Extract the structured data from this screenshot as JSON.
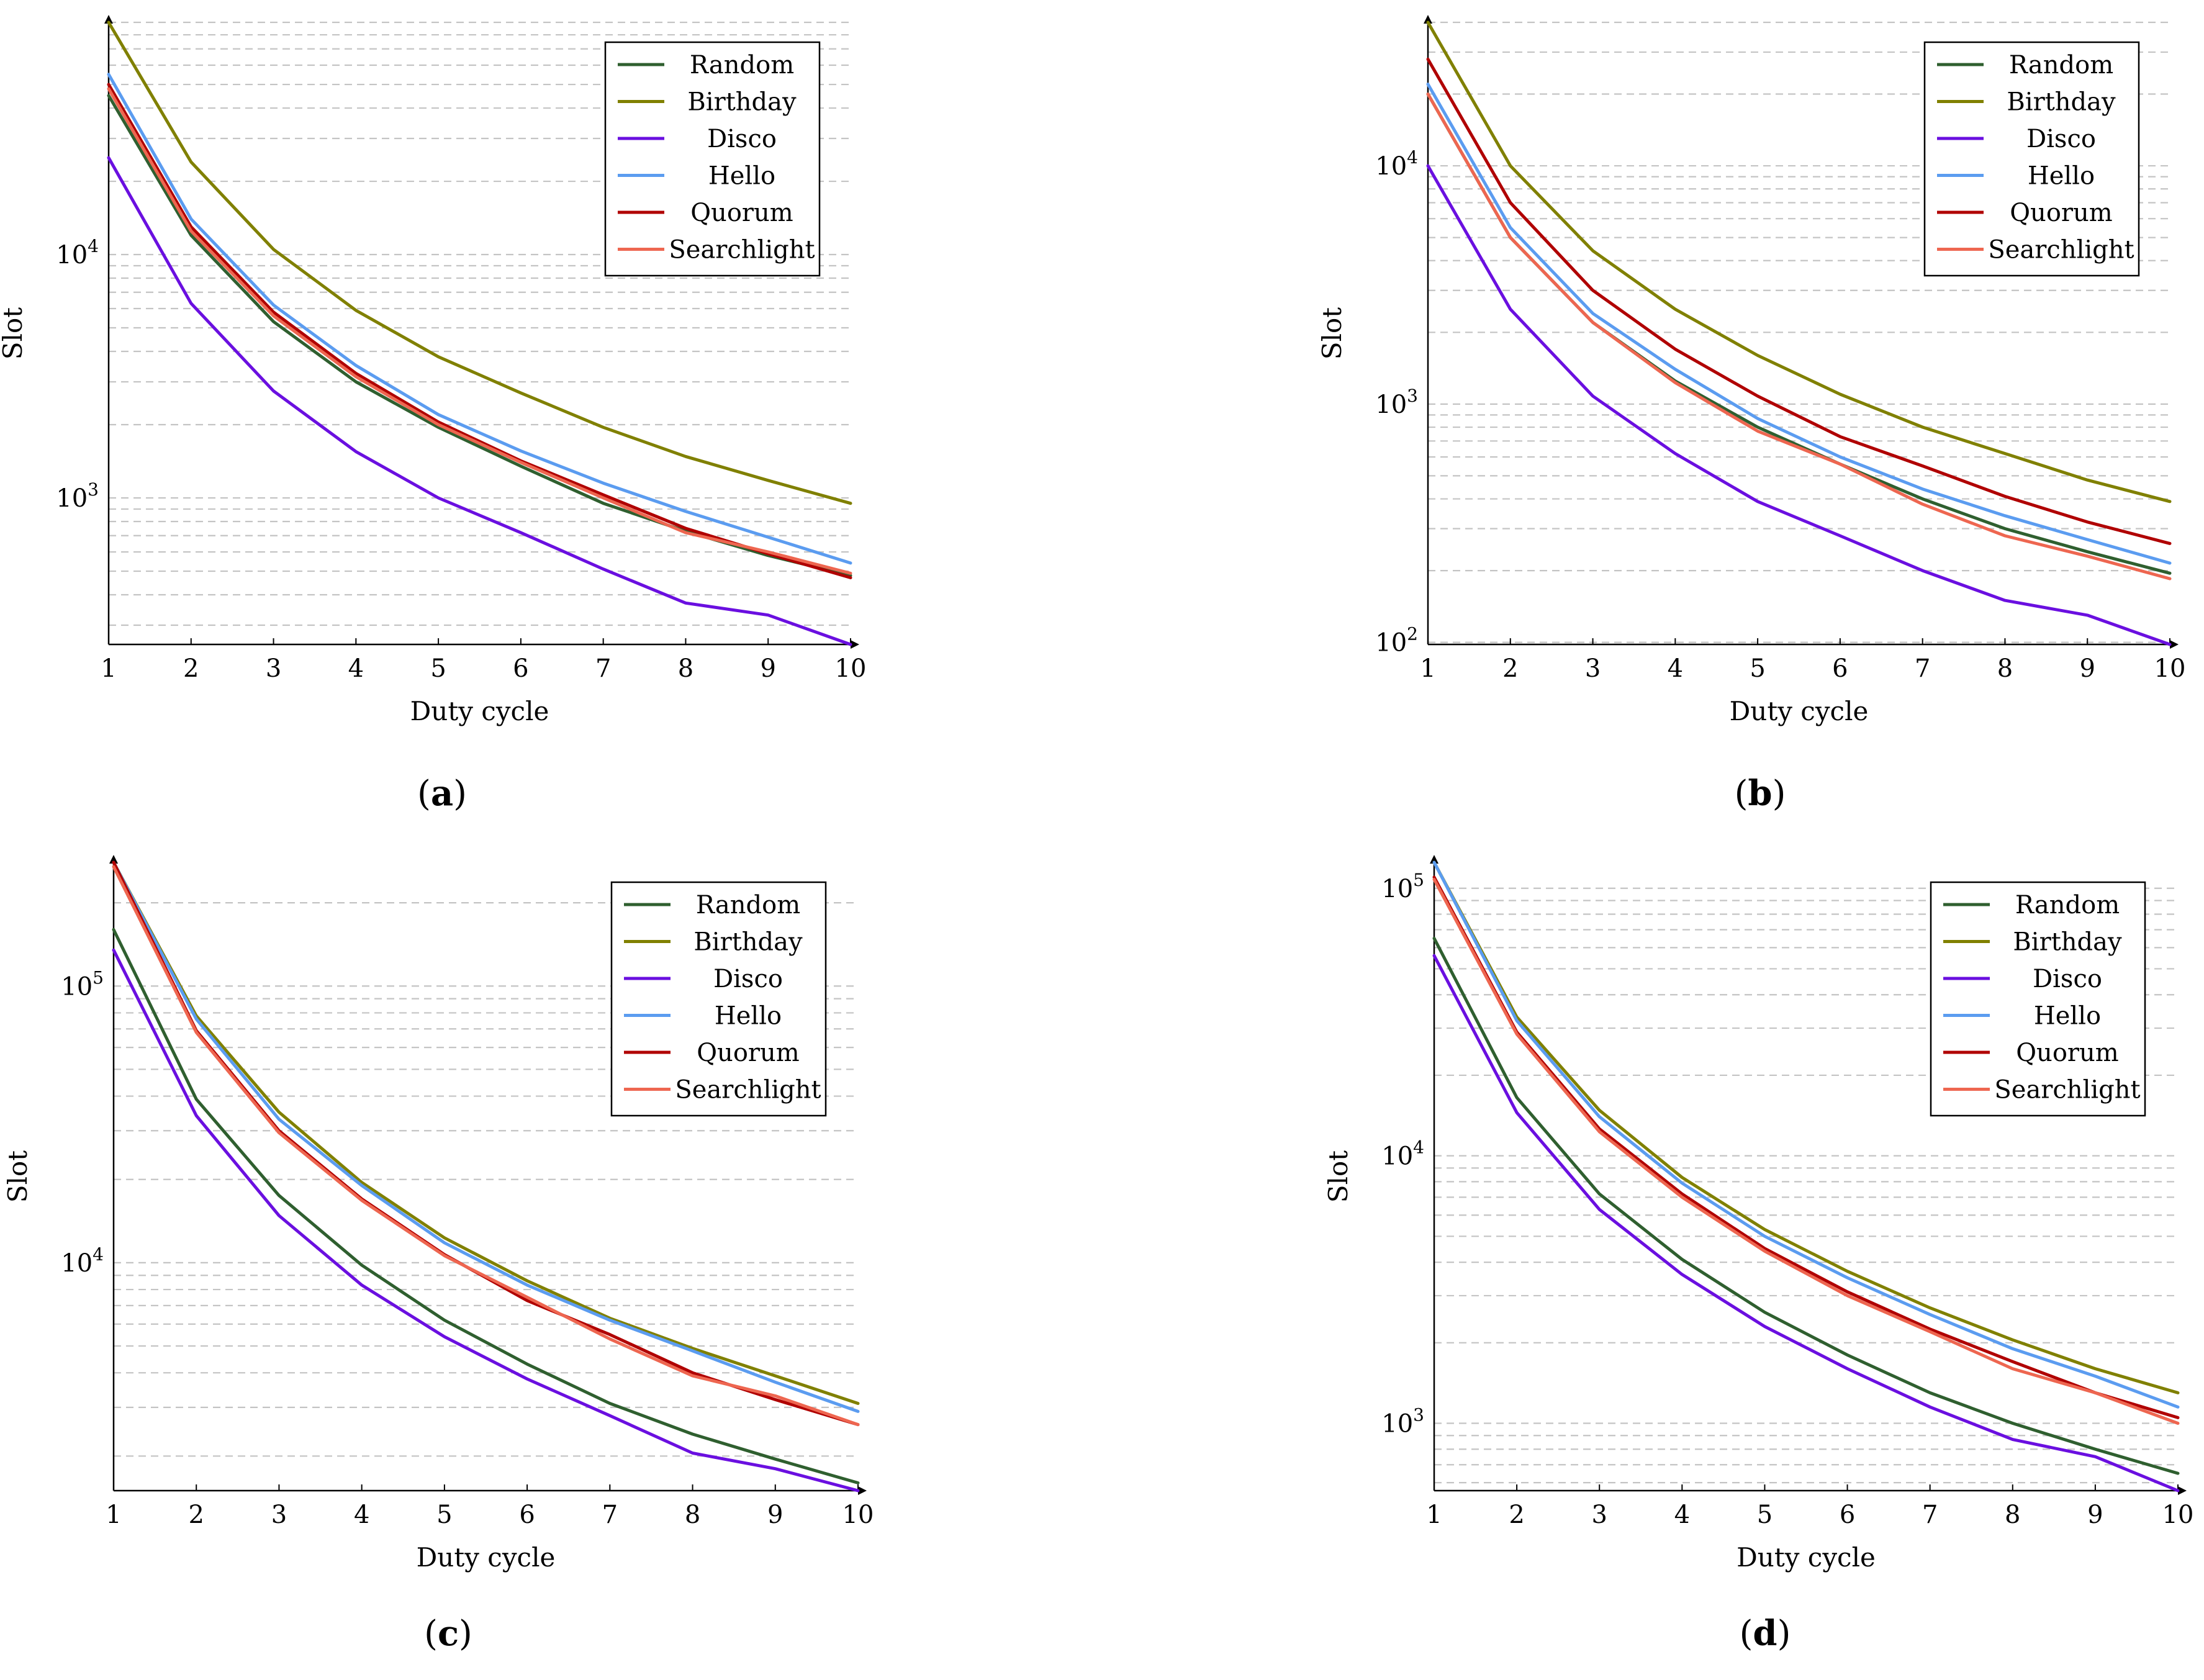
{
  "chart_data": [
    {
      "type": "line",
      "panel_label": "a",
      "ylog": true,
      "xlabel": "Duty cycle",
      "ylabel": "Slot",
      "x": [
        1,
        2,
        3,
        4,
        5,
        6,
        7,
        8,
        9,
        10
      ],
      "xlim": [
        1,
        10
      ],
      "ylim": [
        250,
        90000
      ],
      "ytick_values": [
        1000,
        10000
      ],
      "ytick_labels": [
        {
          "base": "10",
          "exp": "3"
        },
        {
          "base": "10",
          "exp": "4"
        }
      ],
      "xtick_labels": [
        "1",
        "2",
        "3",
        "4",
        "5",
        "6",
        "7",
        "8",
        "9",
        "10"
      ],
      "legend_position": "top-right",
      "series": [
        {
          "name": "Random",
          "color": "#2f5f2f",
          "values": [
            45000,
            12000,
            5300,
            3000,
            1950,
            1350,
            950,
            730,
            580,
            480
          ]
        },
        {
          "name": "Birthday",
          "color": "#808000",
          "values": [
            90000,
            24000,
            10500,
            5900,
            3800,
            2700,
            1950,
            1480,
            1180,
            950
          ]
        },
        {
          "name": "Disco",
          "color": "#6a0fe0",
          "values": [
            25000,
            6300,
            2750,
            1550,
            1000,
            720,
            510,
            370,
            330,
            250
          ]
        },
        {
          "name": "Hello",
          "color": "#5b9cf0",
          "values": [
            55000,
            14000,
            6200,
            3500,
            2200,
            1560,
            1150,
            880,
            690,
            540
          ]
        },
        {
          "name": "Quorum",
          "color": "#b00000",
          "values": [
            50000,
            13000,
            5800,
            3250,
            2050,
            1420,
            1030,
            750,
            590,
            470
          ]
        },
        {
          "name": "Searchlight",
          "color": "#ee6650",
          "values": [
            48000,
            12500,
            5600,
            3150,
            2000,
            1400,
            1000,
            720,
            600,
            490
          ]
        }
      ]
    },
    {
      "type": "line",
      "panel_label": "b",
      "ylog": true,
      "xlabel": "Duty cycle",
      "ylabel": "Slot",
      "x": [
        1,
        2,
        3,
        4,
        5,
        6,
        7,
        8,
        9,
        10
      ],
      "xlim": [
        1,
        10
      ],
      "ylim": [
        98,
        40000
      ],
      "ytick_values": [
        100,
        1000,
        10000
      ],
      "ytick_labels": [
        {
          "base": "10",
          "exp": "2"
        },
        {
          "base": "10",
          "exp": "3"
        },
        {
          "base": "10",
          "exp": "4"
        }
      ],
      "xtick_labels": [
        "1",
        "2",
        "3",
        "4",
        "5",
        "6",
        "7",
        "8",
        "9",
        "10"
      ],
      "legend_position": "top-right",
      "series": [
        {
          "name": "Random",
          "color": "#2f5f2f",
          "values": [
            20000,
            5000,
            2200,
            1250,
            800,
            560,
            400,
            300,
            240,
            195
          ]
        },
        {
          "name": "Birthday",
          "color": "#808000",
          "values": [
            40000,
            10000,
            4400,
            2500,
            1600,
            1100,
            800,
            620,
            480,
            390
          ]
        },
        {
          "name": "Disco",
          "color": "#6a0fe0",
          "values": [
            10000,
            2500,
            1080,
            620,
            390,
            280,
            200,
            150,
            130,
            98
          ]
        },
        {
          "name": "Hello",
          "color": "#5b9cf0",
          "values": [
            22000,
            5500,
            2400,
            1400,
            870,
            600,
            440,
            340,
            270,
            215
          ]
        },
        {
          "name": "Quorum",
          "color": "#b00000",
          "values": [
            28000,
            7000,
            3000,
            1700,
            1080,
            730,
            550,
            410,
            320,
            260
          ]
        },
        {
          "name": "Searchlight",
          "color": "#ee6650",
          "values": [
            20000,
            5000,
            2200,
            1230,
            770,
            560,
            380,
            280,
            230,
            185
          ]
        }
      ]
    },
    {
      "type": "line",
      "panel_label": "c",
      "ylog": true,
      "xlabel": "Duty cycle",
      "ylabel": "Slot",
      "x": [
        1,
        2,
        3,
        4,
        5,
        6,
        7,
        8,
        9,
        10
      ],
      "xlim": [
        1,
        10
      ],
      "ylim": [
        1500,
        280000
      ],
      "ytick_values": [
        10000,
        100000
      ],
      "ytick_labels": [
        {
          "base": "10",
          "exp": "4"
        },
        {
          "base": "10",
          "exp": "5"
        }
      ],
      "xtick_labels": [
        "1",
        "2",
        "3",
        "4",
        "5",
        "6",
        "7",
        "8",
        "9",
        "10"
      ],
      "legend_position": "top-right",
      "series": [
        {
          "name": "Random",
          "color": "#2f5f2f",
          "values": [
            160000,
            39000,
            17500,
            9800,
            6200,
            4300,
            3100,
            2400,
            1950,
            1600
          ]
        },
        {
          "name": "Birthday",
          "color": "#808000",
          "values": [
            280000,
            78000,
            35000,
            19500,
            12300,
            8600,
            6300,
            4900,
            3900,
            3100
          ]
        },
        {
          "name": "Disco",
          "color": "#6a0fe0",
          "values": [
            135000,
            34000,
            14800,
            8300,
            5400,
            3800,
            2800,
            2050,
            1800,
            1500
          ]
        },
        {
          "name": "Hello",
          "color": "#5b9cf0",
          "values": [
            280000,
            76000,
            33000,
            19000,
            11800,
            8300,
            6200,
            4800,
            3700,
            2900
          ]
        },
        {
          "name": "Quorum",
          "color": "#b00000",
          "values": [
            280000,
            69000,
            30000,
            17000,
            10700,
            7300,
            5500,
            4000,
            3200,
            2600
          ]
        },
        {
          "name": "Searchlight",
          "color": "#ee6650",
          "values": [
            270000,
            68000,
            29500,
            16800,
            10600,
            7500,
            5300,
            3900,
            3300,
            2600
          ]
        }
      ]
    },
    {
      "type": "line",
      "panel_label": "d",
      "ylog": true,
      "xlabel": "Duty cycle",
      "ylabel": "Slot",
      "x": [
        1,
        2,
        3,
        4,
        5,
        6,
        7,
        8,
        9,
        10
      ],
      "xlim": [
        1,
        10
      ],
      "ylim": [
        560,
        125000
      ],
      "ytick_values": [
        1000,
        10000,
        100000
      ],
      "ytick_labels": [
        {
          "base": "10",
          "exp": "3"
        },
        {
          "base": "10",
          "exp": "4"
        },
        {
          "base": "10",
          "exp": "5"
        }
      ],
      "xtick_labels": [
        "1",
        "2",
        "3",
        "4",
        "5",
        "6",
        "7",
        "8",
        "9",
        "10"
      ],
      "legend_position": "top-right",
      "series": [
        {
          "name": "Random",
          "color": "#2f5f2f",
          "values": [
            65000,
            16500,
            7200,
            4100,
            2600,
            1800,
            1300,
            1000,
            800,
            650
          ]
        },
        {
          "name": "Birthday",
          "color": "#808000",
          "values": [
            125000,
            33000,
            14800,
            8300,
            5300,
            3700,
            2700,
            2050,
            1600,
            1300
          ]
        },
        {
          "name": "Disco",
          "color": "#6a0fe0",
          "values": [
            56000,
            14500,
            6300,
            3600,
            2300,
            1600,
            1150,
            870,
            750,
            560
          ]
        },
        {
          "name": "Hello",
          "color": "#5b9cf0",
          "values": [
            125000,
            32000,
            14000,
            7900,
            5000,
            3500,
            2550,
            1900,
            1500,
            1150
          ]
        },
        {
          "name": "Quorum",
          "color": "#b00000",
          "values": [
            110000,
            29000,
            12600,
            7200,
            4500,
            3100,
            2250,
            1700,
            1300,
            1050
          ]
        },
        {
          "name": "Searchlight",
          "color": "#ee6650",
          "values": [
            108000,
            28500,
            12300,
            7000,
            4400,
            3000,
            2200,
            1600,
            1300,
            1000
          ]
        }
      ]
    }
  ]
}
